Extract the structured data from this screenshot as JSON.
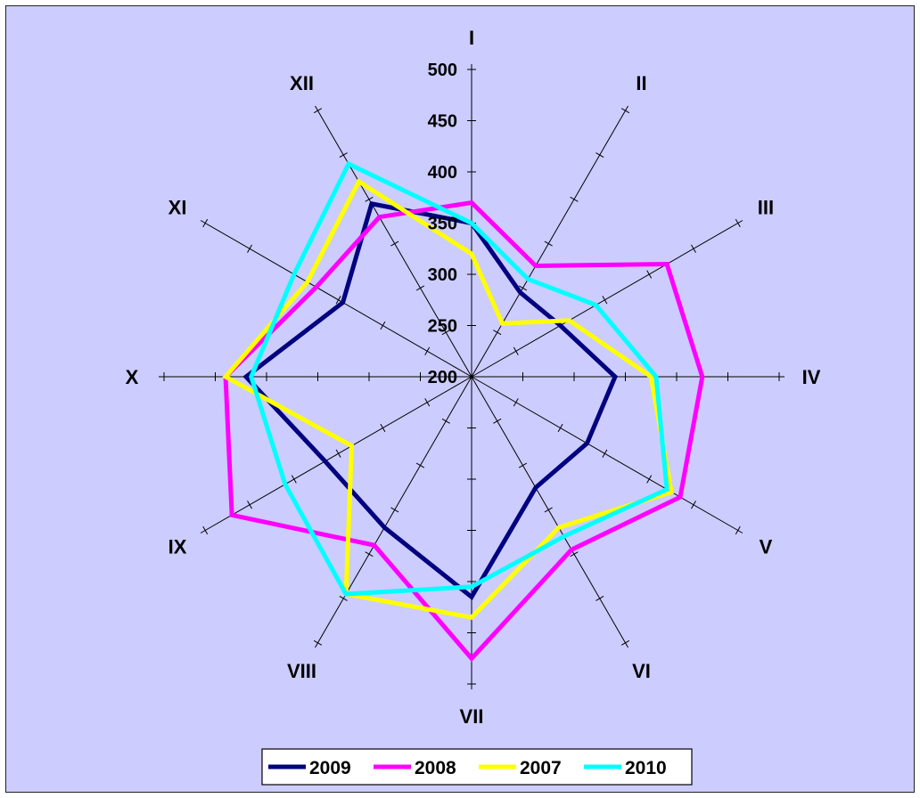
{
  "chart_data": {
    "type": "radar",
    "categories": [
      "I",
      "II",
      "III",
      "IV",
      "V",
      "VI",
      "VII",
      "VIII",
      "IX",
      "X",
      "XI",
      "XII"
    ],
    "r_ticks": [
      "200",
      "250",
      "300",
      "350",
      "400",
      "450",
      "500"
    ],
    "r_range": [
      200,
      500
    ],
    "grid": false,
    "legend_position": "bottom",
    "series": [
      {
        "name": "2009",
        "color": "#000080",
        "values": [
          350,
          295,
          300,
          340,
          330,
          325,
          415,
          370,
          365,
          420,
          345,
          395
        ]
      },
      {
        "name": "2008",
        "color": "#ff00ff",
        "values": [
          370,
          325,
          420,
          425,
          435,
          395,
          475,
          390,
          470,
          440,
          375,
          380
        ]
      },
      {
        "name": "2007",
        "color": "#ffff00",
        "values": [
          320,
          260,
          310,
          375,
          425,
          370,
          435,
          445,
          335,
          440,
          385,
          420
        ]
      },
      {
        "name": "2010",
        "color": "#00ffff",
        "values": [
          350,
          310,
          340,
          380,
          420,
          380,
          405,
          445,
          410,
          415,
          400,
          440
        ]
      }
    ]
  }
}
